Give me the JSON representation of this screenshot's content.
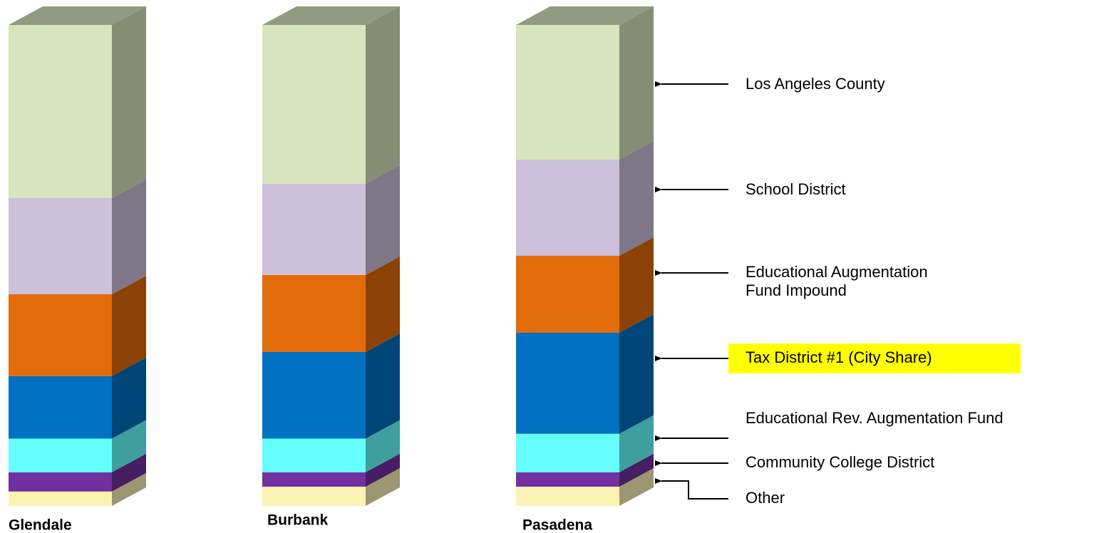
{
  "chart_data": {
    "type": "bar3d_stacked",
    "categories": [
      "Glendale",
      "Burbank",
      "Pasadena"
    ],
    "ylim": [
      0,
      100
    ],
    "series": [
      {
        "name": "Other",
        "color": "#fbf3b4",
        "values": [
          3,
          4,
          4
        ]
      },
      {
        "name": "Community College District",
        "color": "#7030a0",
        "values": [
          4,
          3,
          3
        ]
      },
      {
        "name": "Educational Rev. Augmentation Fund",
        "color": "#66ffff",
        "values": [
          7,
          7,
          8
        ]
      },
      {
        "name": "Tax District #1 (City Share)",
        "color": "#0070c0",
        "values": [
          13,
          18,
          21
        ],
        "highlight": "#ffff00"
      },
      {
        "name": "Educational Augmentation\nFund Impound",
        "color": "#e26b0a",
        "values": [
          17,
          16,
          16
        ]
      },
      {
        "name": "School District",
        "color": "#ccc0da",
        "values": [
          20,
          19,
          20
        ]
      },
      {
        "name": "Los Angeles County",
        "color": "#d7e4bd",
        "values": [
          36,
          33,
          28
        ]
      }
    ]
  }
}
